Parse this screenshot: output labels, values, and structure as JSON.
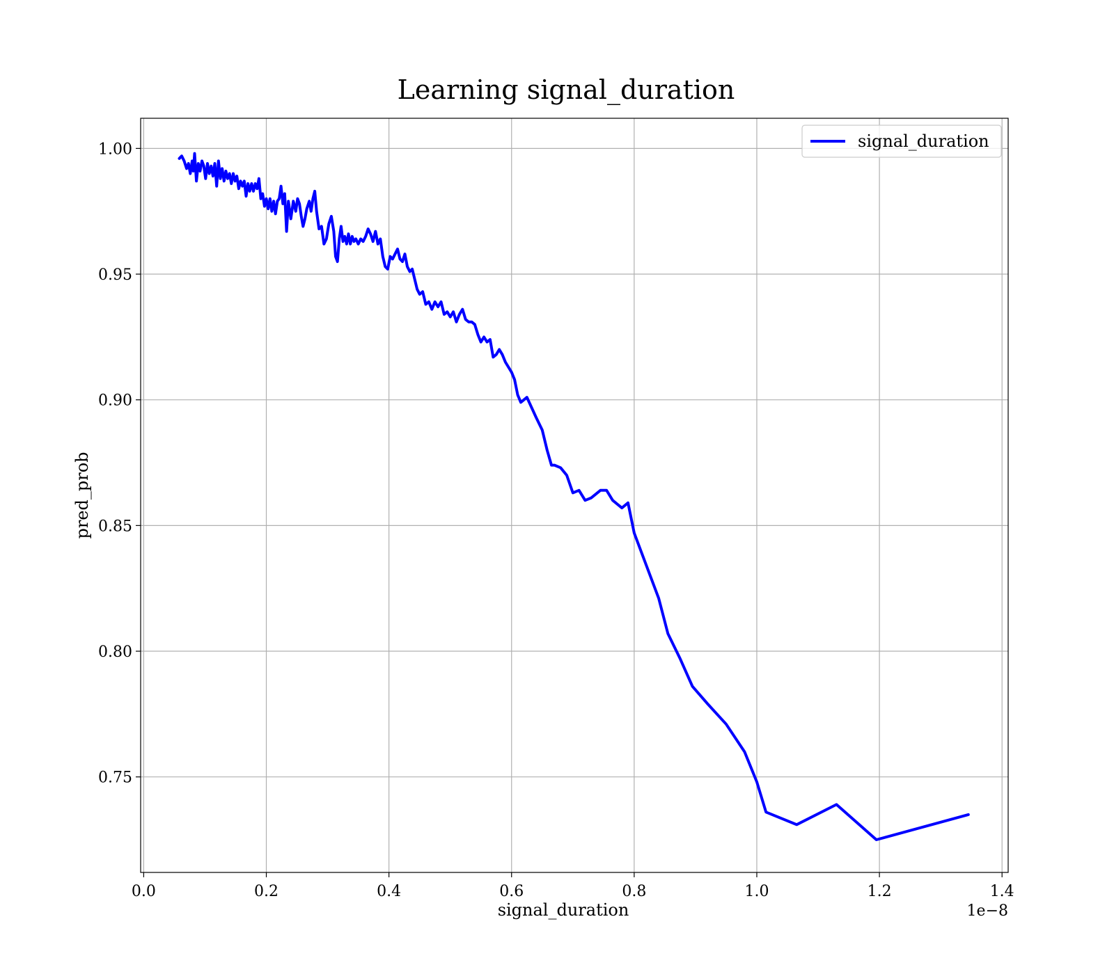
{
  "chart_data": {
    "type": "line",
    "title": "Learning signal_duration",
    "xlabel": "signal_duration",
    "ylabel": "pred_prob",
    "x_offset_text": "1e−8",
    "xlim": [
      -0.005,
      1.41
    ],
    "ylim": [
      0.712,
      1.012
    ],
    "x_ticks": [
      0.0,
      0.2,
      0.4,
      0.6,
      0.8,
      1.0,
      1.2,
      1.4
    ],
    "x_tick_labels": [
      "0.0",
      "0.2",
      "0.4",
      "0.6",
      "0.8",
      "1.0",
      "1.2",
      "1.4"
    ],
    "y_ticks": [
      0.75,
      0.8,
      0.85,
      0.9,
      0.95,
      1.0
    ],
    "y_tick_labels": [
      "0.75",
      "0.80",
      "0.85",
      "0.90",
      "0.95",
      "1.00"
    ],
    "grid": true,
    "legend_position": "top-right",
    "series": [
      {
        "name": "signal_duration",
        "color": "#0000ff",
        "points": [
          [
            0.058,
            0.996
          ],
          [
            0.062,
            0.997
          ],
          [
            0.066,
            0.995
          ],
          [
            0.07,
            0.992
          ],
          [
            0.073,
            0.994
          ],
          [
            0.076,
            0.99
          ],
          [
            0.079,
            0.995
          ],
          [
            0.081,
            0.991
          ],
          [
            0.083,
            0.998
          ],
          [
            0.086,
            0.987
          ],
          [
            0.089,
            0.994
          ],
          [
            0.092,
            0.991
          ],
          [
            0.095,
            0.995
          ],
          [
            0.098,
            0.993
          ],
          [
            0.101,
            0.988
          ],
          [
            0.104,
            0.994
          ],
          [
            0.107,
            0.99
          ],
          [
            0.11,
            0.993
          ],
          [
            0.113,
            0.989
          ],
          [
            0.116,
            0.994
          ],
          [
            0.119,
            0.985
          ],
          [
            0.122,
            0.995
          ],
          [
            0.125,
            0.988
          ],
          [
            0.128,
            0.992
          ],
          [
            0.131,
            0.987
          ],
          [
            0.134,
            0.991
          ],
          [
            0.137,
            0.988
          ],
          [
            0.14,
            0.99
          ],
          [
            0.143,
            0.986
          ],
          [
            0.146,
            0.99
          ],
          [
            0.149,
            0.987
          ],
          [
            0.152,
            0.989
          ],
          [
            0.155,
            0.984
          ],
          [
            0.158,
            0.987
          ],
          [
            0.161,
            0.985
          ],
          [
            0.164,
            0.987
          ],
          [
            0.167,
            0.981
          ],
          [
            0.17,
            0.986
          ],
          [
            0.173,
            0.983
          ],
          [
            0.176,
            0.986
          ],
          [
            0.179,
            0.983
          ],
          [
            0.182,
            0.986
          ],
          [
            0.185,
            0.984
          ],
          [
            0.188,
            0.988
          ],
          [
            0.191,
            0.98
          ],
          [
            0.194,
            0.982
          ],
          [
            0.197,
            0.977
          ],
          [
            0.2,
            0.98
          ],
          [
            0.203,
            0.976
          ],
          [
            0.206,
            0.98
          ],
          [
            0.209,
            0.975
          ],
          [
            0.212,
            0.979
          ],
          [
            0.215,
            0.974
          ],
          [
            0.218,
            0.979
          ],
          [
            0.221,
            0.98
          ],
          [
            0.224,
            0.985
          ],
          [
            0.227,
            0.978
          ],
          [
            0.23,
            0.982
          ],
          [
            0.233,
            0.967
          ],
          [
            0.236,
            0.979
          ],
          [
            0.24,
            0.972
          ],
          [
            0.244,
            0.979
          ],
          [
            0.248,
            0.975
          ],
          [
            0.251,
            0.98
          ],
          [
            0.254,
            0.978
          ],
          [
            0.257,
            0.973
          ],
          [
            0.26,
            0.969
          ],
          [
            0.263,
            0.972
          ],
          [
            0.266,
            0.976
          ],
          [
            0.27,
            0.979
          ],
          [
            0.273,
            0.975
          ],
          [
            0.276,
            0.98
          ],
          [
            0.279,
            0.983
          ],
          [
            0.282,
            0.975
          ],
          [
            0.286,
            0.968
          ],
          [
            0.29,
            0.969
          ],
          [
            0.294,
            0.962
          ],
          [
            0.298,
            0.964
          ],
          [
            0.302,
            0.97
          ],
          [
            0.306,
            0.973
          ],
          [
            0.31,
            0.967
          ],
          [
            0.313,
            0.957
          ],
          [
            0.316,
            0.955
          ],
          [
            0.319,
            0.964
          ],
          [
            0.322,
            0.969
          ],
          [
            0.325,
            0.963
          ],
          [
            0.328,
            0.965
          ],
          [
            0.331,
            0.962
          ],
          [
            0.334,
            0.966
          ],
          [
            0.337,
            0.962
          ],
          [
            0.34,
            0.965
          ],
          [
            0.343,
            0.963
          ],
          [
            0.346,
            0.964
          ],
          [
            0.35,
            0.962
          ],
          [
            0.354,
            0.964
          ],
          [
            0.358,
            0.963
          ],
          [
            0.362,
            0.965
          ],
          [
            0.366,
            0.968
          ],
          [
            0.37,
            0.966
          ],
          [
            0.374,
            0.963
          ],
          [
            0.378,
            0.967
          ],
          [
            0.382,
            0.962
          ],
          [
            0.386,
            0.964
          ],
          [
            0.39,
            0.957
          ],
          [
            0.394,
            0.953
          ],
          [
            0.398,
            0.952
          ],
          [
            0.402,
            0.957
          ],
          [
            0.406,
            0.956
          ],
          [
            0.41,
            0.958
          ],
          [
            0.414,
            0.96
          ],
          [
            0.418,
            0.956
          ],
          [
            0.422,
            0.955
          ],
          [
            0.426,
            0.958
          ],
          [
            0.43,
            0.953
          ],
          [
            0.434,
            0.951
          ],
          [
            0.438,
            0.952
          ],
          [
            0.442,
            0.948
          ],
          [
            0.446,
            0.944
          ],
          [
            0.45,
            0.942
          ],
          [
            0.455,
            0.943
          ],
          [
            0.46,
            0.938
          ],
          [
            0.465,
            0.939
          ],
          [
            0.47,
            0.936
          ],
          [
            0.475,
            0.939
          ],
          [
            0.48,
            0.937
          ],
          [
            0.485,
            0.939
          ],
          [
            0.49,
            0.934
          ],
          [
            0.495,
            0.935
          ],
          [
            0.5,
            0.933
          ],
          [
            0.505,
            0.935
          ],
          [
            0.51,
            0.931
          ],
          [
            0.515,
            0.934
          ],
          [
            0.52,
            0.936
          ],
          [
            0.525,
            0.932
          ],
          [
            0.53,
            0.931
          ],
          [
            0.535,
            0.931
          ],
          [
            0.54,
            0.93
          ],
          [
            0.545,
            0.926
          ],
          [
            0.55,
            0.923
          ],
          [
            0.555,
            0.925
          ],
          [
            0.56,
            0.923
          ],
          [
            0.565,
            0.924
          ],
          [
            0.57,
            0.917
          ],
          [
            0.575,
            0.918
          ],
          [
            0.58,
            0.92
          ],
          [
            0.585,
            0.918
          ],
          [
            0.59,
            0.915
          ],
          [
            0.6,
            0.911
          ],
          [
            0.605,
            0.908
          ],
          [
            0.61,
            0.902
          ],
          [
            0.615,
            0.899
          ],
          [
            0.625,
            0.901
          ],
          [
            0.64,
            0.893
          ],
          [
            0.65,
            0.888
          ],
          [
            0.658,
            0.88
          ],
          [
            0.665,
            0.874
          ],
          [
            0.67,
            0.874
          ],
          [
            0.68,
            0.873
          ],
          [
            0.69,
            0.87
          ],
          [
            0.7,
            0.863
          ],
          [
            0.71,
            0.864
          ],
          [
            0.72,
            0.86
          ],
          [
            0.73,
            0.861
          ],
          [
            0.745,
            0.864
          ],
          [
            0.755,
            0.864
          ],
          [
            0.765,
            0.86
          ],
          [
            0.78,
            0.857
          ],
          [
            0.79,
            0.859
          ],
          [
            0.8,
            0.847
          ],
          [
            0.82,
            0.834
          ],
          [
            0.84,
            0.821
          ],
          [
            0.855,
            0.807
          ],
          [
            0.875,
            0.797
          ],
          [
            0.895,
            0.786
          ],
          [
            0.92,
            0.779
          ],
          [
            0.95,
            0.771
          ],
          [
            0.98,
            0.76
          ],
          [
            1.0,
            0.748
          ],
          [
            1.015,
            0.736
          ],
          [
            1.065,
            0.731
          ],
          [
            1.13,
            0.739
          ],
          [
            1.195,
            0.725
          ],
          [
            1.345,
            0.735
          ]
        ]
      }
    ]
  }
}
